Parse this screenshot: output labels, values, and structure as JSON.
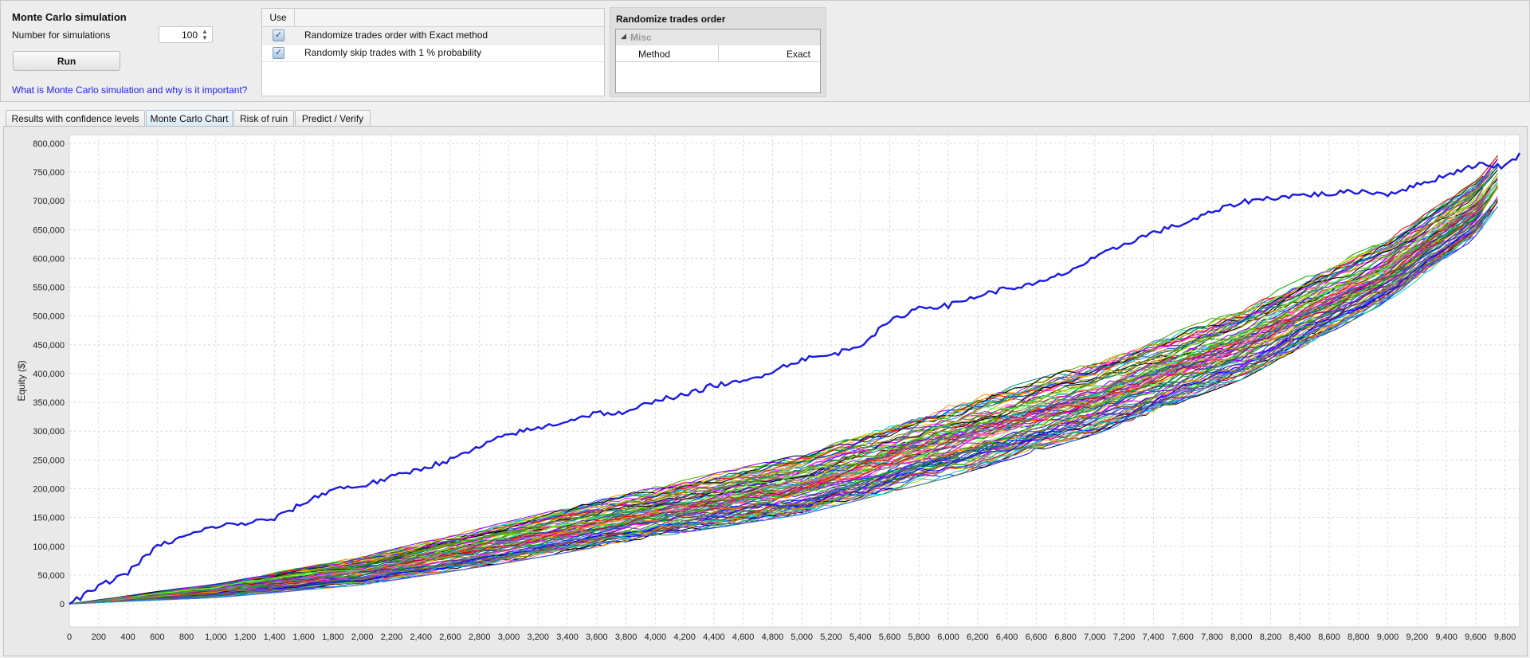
{
  "simulation": {
    "title": "Monte Carlo simulation",
    "count_label": "Number for simulations",
    "count_value": "100",
    "run_label": "Run",
    "help_link": "What is Monte Carlo simulation and why is it important?"
  },
  "options": {
    "header_use": "Use",
    "rows": [
      {
        "label": "Randomize trades order with Exact method",
        "checked": true
      },
      {
        "label": "Randomly skip trades with 1 % probability",
        "checked": true
      }
    ]
  },
  "properties": {
    "title": "Randomize trades order",
    "category": "Misc",
    "name": "Method",
    "value": "Exact"
  },
  "tabs": [
    {
      "label": "Results with confidence levels",
      "active": false
    },
    {
      "label": "Monte Carlo Chart",
      "active": true
    },
    {
      "label": "Risk of ruin",
      "active": false
    },
    {
      "label": "Predict / Verify",
      "active": false
    }
  ],
  "chart_data": {
    "type": "line",
    "title": "",
    "xlabel": "",
    "ylabel": "Equity ($)",
    "xlim": [
      0,
      9900
    ],
    "ylim": [
      -40000,
      815000
    ],
    "x_ticks": [
      0,
      200,
      400,
      600,
      800,
      1000,
      1200,
      1400,
      1600,
      1800,
      2000,
      2200,
      2400,
      2600,
      2800,
      3000,
      3200,
      3400,
      3600,
      3800,
      4000,
      4200,
      4400,
      4600,
      4800,
      5000,
      5200,
      5400,
      5600,
      5800,
      6000,
      6200,
      6400,
      6600,
      6800,
      7000,
      7200,
      7400,
      7600,
      7800,
      8000,
      8200,
      8400,
      8600,
      8800,
      9000,
      9200,
      9400,
      9600,
      9800
    ],
    "x_tick_labels": [
      "0",
      "200",
      "400",
      "600",
      "800",
      "1,000",
      "1,200",
      "1,400",
      "1,600",
      "1,800",
      "2,000",
      "2,200",
      "2,400",
      "2,600",
      "2,800",
      "3,000",
      "3,200",
      "3,400",
      "3,600",
      "3,800",
      "4,000",
      "4,200",
      "4,400",
      "4,600",
      "4,800",
      "5,000",
      "5,200",
      "5,400",
      "5,600",
      "5,800",
      "6,000",
      "6,200",
      "6,400",
      "6,600",
      "6,800",
      "7,000",
      "7,200",
      "7,400",
      "7,600",
      "7,800",
      "8,000",
      "8,200",
      "8,400",
      "8,600",
      "8,800",
      "9,000",
      "9,200",
      "9,400",
      "9,600",
      "9,800"
    ],
    "y_ticks": [
      0,
      50000,
      100000,
      150000,
      200000,
      250000,
      300000,
      350000,
      400000,
      450000,
      500000,
      550000,
      600000,
      650000,
      700000,
      750000,
      800000
    ],
    "y_tick_labels": [
      "0",
      "50,000",
      "100,000",
      "150,000",
      "200,000",
      "250,000",
      "300,000",
      "350,000",
      "400,000",
      "450,000",
      "500,000",
      "550,000",
      "600,000",
      "650,000",
      "700,000",
      "750,000",
      "800,000"
    ],
    "grid": true,
    "legend": "none",
    "original_series": {
      "color": "#1a1ae0",
      "x": [
        0,
        200,
        400,
        600,
        800,
        1000,
        1200,
        1400,
        1600,
        1800,
        2000,
        2200,
        2400,
        2600,
        2800,
        3000,
        3200,
        3400,
        3600,
        3800,
        4000,
        4200,
        4400,
        4600,
        4800,
        5000,
        5200,
        5400,
        5600,
        5800,
        6000,
        6200,
        6400,
        6600,
        6800,
        7000,
        7200,
        7400,
        7600,
        7800,
        8000,
        8200,
        8400,
        8600,
        8800,
        9000,
        9200,
        9400,
        9600,
        9800,
        9900
      ],
      "y": [
        0,
        30000,
        55000,
        100000,
        118000,
        135000,
        140000,
        148000,
        175000,
        200000,
        205000,
        220000,
        235000,
        250000,
        272000,
        295000,
        305000,
        318000,
        332000,
        330000,
        355000,
        362000,
        380000,
        385000,
        405000,
        425000,
        432000,
        450000,
        490000,
        515000,
        518000,
        535000,
        548000,
        555000,
        575000,
        600000,
        625000,
        645000,
        660000,
        680000,
        698000,
        705000,
        710000,
        712000,
        717000,
        712000,
        727000,
        745000,
        763000,
        760000,
        780000
      ]
    },
    "simulation_band": {
      "series_count": 100,
      "x": [
        0,
        1000,
        2000,
        3000,
        4000,
        5000,
        6000,
        7000,
        8000,
        9000,
        9600,
        9800
      ],
      "lower": [
        0,
        12000,
        35000,
        75000,
        120000,
        160000,
        225000,
        300000,
        395000,
        530000,
        640000,
        710000
      ],
      "upper": [
        0,
        35000,
        80000,
        140000,
        200000,
        255000,
        340000,
        415000,
        510000,
        630000,
        730000,
        790000
      ],
      "colors": [
        "#ff0000",
        "#00aa00",
        "#0000ff",
        "#ff00ff",
        "#00cccc",
        "#cccc00",
        "#000000",
        "#ff8800",
        "#8800ff",
        "#008888",
        "#888800",
        "#aa0044",
        "#44aa00",
        "#0044aa",
        "#ff66aa",
        "#66ff33",
        "#3366ff",
        "#996633",
        "#663399",
        "#339966"
      ]
    }
  }
}
